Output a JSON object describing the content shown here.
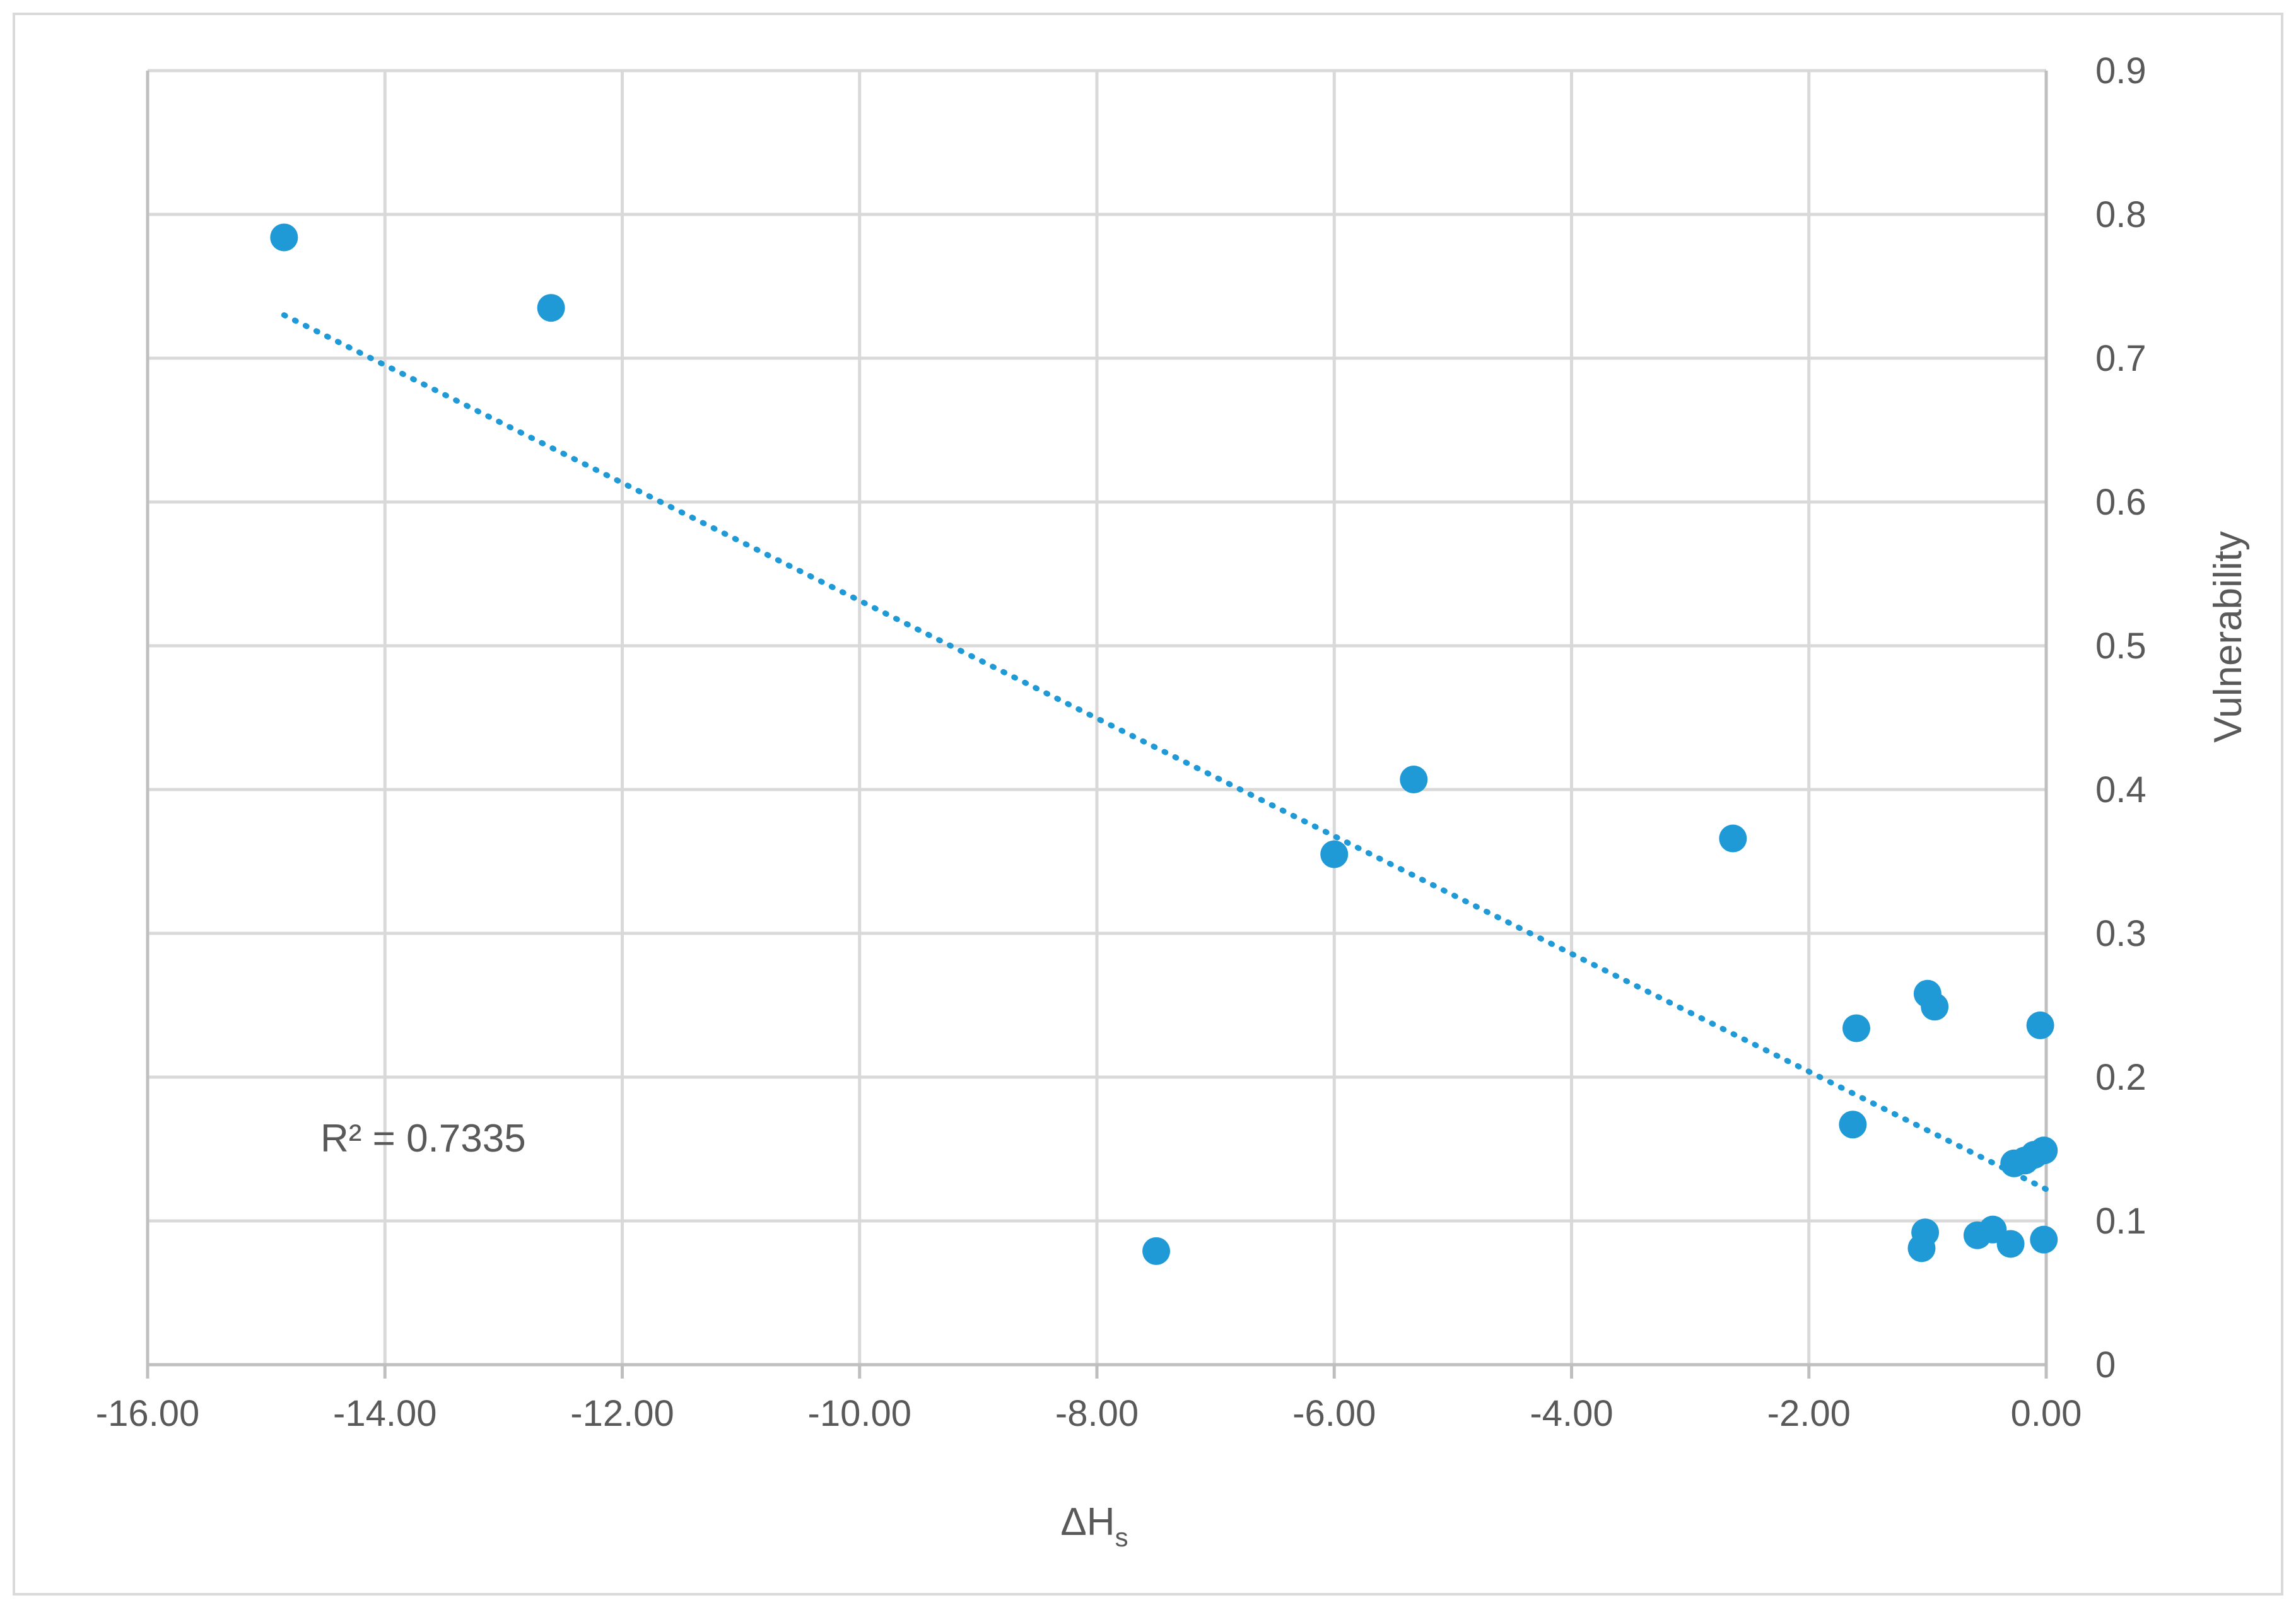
{
  "chart_data": {
    "type": "scatter",
    "title": "",
    "xlabel": "ΔH",
    "xlabel_subscript": "s",
    "ylabel": "Vulnerability",
    "xlim": [
      -16,
      0
    ],
    "ylim": [
      0,
      0.9
    ],
    "x_tick_labels": [
      "-16.00",
      "-14.00",
      "-12.00",
      "-10.00",
      "-8.00",
      "-6.00",
      "-4.00",
      "-2.00",
      "0.00"
    ],
    "y_tick_labels": [
      "0",
      "0.1",
      "0.2",
      "0.3",
      "0.4",
      "0.5",
      "0.6",
      "0.7",
      "0.8",
      "0.9"
    ],
    "y_axis_position": "right",
    "grid": true,
    "legend": "none",
    "point_color": "#1f9ad6",
    "points": [
      {
        "x": -14.85,
        "y": 0.784
      },
      {
        "x": -12.6,
        "y": 0.735
      },
      {
        "x": -7.5,
        "y": 0.079
      },
      {
        "x": -6.0,
        "y": 0.355
      },
      {
        "x": -5.33,
        "y": 0.407
      },
      {
        "x": -2.64,
        "y": 0.366
      },
      {
        "x": -1.6,
        "y": 0.234
      },
      {
        "x": -1.63,
        "y": 0.167
      },
      {
        "x": -1.0,
        "y": 0.258
      },
      {
        "x": -0.94,
        "y": 0.249
      },
      {
        "x": -1.02,
        "y": 0.092
      },
      {
        "x": -1.05,
        "y": 0.081
      },
      {
        "x": -0.58,
        "y": 0.09
      },
      {
        "x": -0.45,
        "y": 0.094
      },
      {
        "x": -0.3,
        "y": 0.084
      },
      {
        "x": -0.27,
        "y": 0.14
      },
      {
        "x": -0.18,
        "y": 0.142
      },
      {
        "x": -0.1,
        "y": 0.146
      },
      {
        "x": -0.02,
        "y": 0.149
      },
      {
        "x": -0.02,
        "y": 0.087
      },
      {
        "x": -0.05,
        "y": 0.236
      }
    ],
    "trendline": {
      "type": "linear",
      "style": "dotted",
      "x_start": -14.85,
      "x_end": 0,
      "y_start": 0.73,
      "y_end": 0.122
    },
    "annotation": "R² = 0.7335"
  }
}
